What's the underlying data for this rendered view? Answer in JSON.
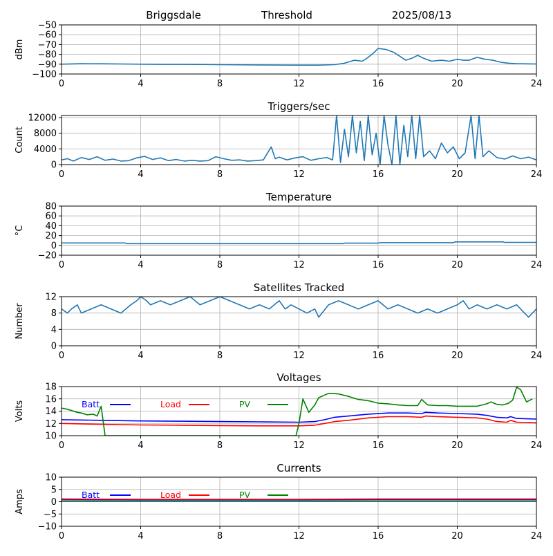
{
  "header": {
    "station": "Briggsdale",
    "label": "Threshold",
    "date": "2025/08/13"
  },
  "colors": {
    "series": "#1f77b4",
    "batt": "#0000ff",
    "load": "#ff0000",
    "pv": "#008000",
    "grid": "#b0b0b0",
    "axis": "#000000"
  },
  "chart_data": [
    {
      "id": "threshold",
      "type": "line",
      "title": "",
      "ylabel": "dBm",
      "xlim": [
        0,
        24
      ],
      "xticks": [
        "0",
        "4",
        "8",
        "12",
        "16",
        "20",
        "24"
      ],
      "ylim": [
        -100,
        -50
      ],
      "yticks": [
        "−100",
        "−90",
        "−80",
        "−70",
        "−60",
        "−50"
      ],
      "ytick_values": [
        -100,
        -90,
        -80,
        -70,
        -60,
        -50
      ],
      "grid": true,
      "series": [
        {
          "color": "#1f77b4",
          "x": [
            0,
            1,
            2,
            3,
            4,
            5,
            6,
            7,
            8,
            9,
            10,
            11,
            12,
            13,
            13.8,
            14.3,
            14.8,
            15.2,
            15.5,
            15.8,
            16,
            16.4,
            16.8,
            17.1,
            17.4,
            17.7,
            18,
            18.3,
            18.7,
            19.2,
            19.6,
            20,
            20.3,
            20.6,
            21,
            21.4,
            21.8,
            22.2,
            22.6,
            23,
            24
          ],
          "y": [
            -90,
            -89.5,
            -89.6,
            -89.8,
            -90,
            -90.2,
            -90.2,
            -90.3,
            -90.5,
            -90.6,
            -90.8,
            -90.9,
            -91,
            -91,
            -90.5,
            -89,
            -86,
            -87,
            -83,
            -78,
            -74,
            -75,
            -78,
            -82,
            -86,
            -84,
            -81,
            -84,
            -87,
            -86,
            -87,
            -85,
            -86,
            -86,
            -83,
            -85,
            -86,
            -88,
            -89,
            -89.5,
            -89.8
          ]
        }
      ]
    },
    {
      "id": "triggers",
      "type": "line",
      "title": "Triggers/sec",
      "ylabel": "Count",
      "xlim": [
        0,
        24
      ],
      "xticks": [
        "0",
        "4",
        "8",
        "12",
        "16",
        "20",
        "24"
      ],
      "ylim": [
        0,
        12500
      ],
      "yticks": [
        "0",
        "4000",
        "8000",
        "12000"
      ],
      "ytick_values": [
        0,
        4000,
        8000,
        12000
      ],
      "grid": true,
      "series": [
        {
          "color": "#1f77b4",
          "x": [
            0,
            0.3,
            0.6,
            1,
            1.4,
            1.8,
            2.2,
            2.6,
            3,
            3.4,
            3.8,
            4.2,
            4.6,
            5,
            5.4,
            5.8,
            6.2,
            6.6,
            7,
            7.4,
            7.8,
            8.2,
            8.6,
            9,
            9.4,
            9.8,
            10.2,
            10.6,
            10.8,
            11,
            11.4,
            11.8,
            12.2,
            12.6,
            13,
            13.4,
            13.7,
            13.9,
            14.1,
            14.3,
            14.5,
            14.7,
            14.9,
            15.1,
            15.3,
            15.5,
            15.7,
            15.9,
            16.1,
            16.3,
            16.5,
            16.7,
            16.9,
            17.1,
            17.3,
            17.5,
            17.7,
            17.9,
            18.1,
            18.3,
            18.6,
            18.9,
            19.2,
            19.5,
            19.8,
            20.1,
            20.4,
            20.7,
            20.9,
            21.1,
            21.3,
            21.6,
            22,
            22.4,
            22.8,
            23.2,
            23.6,
            24
          ],
          "y": [
            1200,
            1500,
            900,
            1800,
            1300,
            2000,
            1100,
            1400,
            900,
            1000,
            1700,
            2100,
            1300,
            1700,
            1000,
            1300,
            900,
            1100,
            900,
            1000,
            2000,
            1500,
            1100,
            1200,
            900,
            1000,
            1200,
            4500,
            1500,
            1900,
            1200,
            1700,
            2000,
            1100,
            1500,
            1800,
            1200,
            12500,
            500,
            9000,
            2000,
            12500,
            3000,
            11000,
            1000,
            12500,
            2500,
            8000,
            0,
            12500,
            5000,
            0,
            12500,
            0,
            10000,
            2000,
            12500,
            1500,
            12500,
            2000,
            3500,
            1500,
            5500,
            3000,
            4500,
            1500,
            3000,
            12500,
            1500,
            12500,
            2000,
            3500,
            1800,
            1400,
            2200,
            1500,
            1900,
            1200
          ]
        }
      ]
    },
    {
      "id": "temperature",
      "type": "line",
      "title": "Temperature",
      "ylabel": "°C",
      "xlim": [
        0,
        24
      ],
      "xticks": [
        "0",
        "4",
        "8",
        "12",
        "16",
        "20",
        "24"
      ],
      "ylim": [
        -20,
        80
      ],
      "yticks": [
        "−20",
        "0",
        "20",
        "40",
        "60",
        "80"
      ],
      "ytick_values": [
        -20,
        0,
        20,
        40,
        60,
        80
      ],
      "grid": true,
      "series": [
        {
          "color": "#1f77b4",
          "x": [
            0,
            3.2,
            3.3,
            14.2,
            14.3,
            16,
            16.1,
            19.8,
            19.9,
            22.3,
            22.4,
            24
          ],
          "y": [
            5,
            5,
            3.5,
            3.5,
            4.5,
            4.5,
            5.5,
            5.5,
            7,
            7,
            6,
            6
          ]
        }
      ]
    },
    {
      "id": "satellites",
      "type": "line",
      "title": "Satellites Tracked",
      "ylabel": "Number",
      "xlim": [
        0,
        24
      ],
      "xticks": [
        "0",
        "4",
        "8",
        "12",
        "16",
        "20",
        "24"
      ],
      "ylim": [
        0,
        12
      ],
      "yticks": [
        "0",
        "4",
        "8",
        "12"
      ],
      "ytick_values": [
        0,
        4,
        8,
        12
      ],
      "grid": true,
      "series": [
        {
          "color": "#1f77b4",
          "x": [
            0,
            0.3,
            0.5,
            0.8,
            1,
            1.5,
            2,
            2.5,
            3,
            3.5,
            3.8,
            4,
            4.3,
            4.5,
            5,
            5.5,
            6,
            6.5,
            7,
            7.5,
            8,
            8.5,
            9,
            9.5,
            10,
            10.5,
            11,
            11.3,
            11.6,
            12,
            12.4,
            12.8,
            13,
            13.5,
            14,
            14.5,
            15,
            15.5,
            16,
            16.5,
            17,
            17.5,
            18,
            18.5,
            19,
            19.5,
            20,
            20.3,
            20.6,
            21,
            21.5,
            22,
            22.5,
            23,
            23.4,
            23.6,
            24
          ],
          "y": [
            9,
            8,
            9,
            10,
            8,
            9,
            10,
            9,
            8,
            10,
            11,
            12,
            11,
            10,
            11,
            10,
            11,
            12,
            10,
            11,
            12,
            11,
            10,
            9,
            10,
            9,
            11,
            9,
            10,
            9,
            8,
            9,
            7,
            10,
            11,
            10,
            9,
            10,
            11,
            9,
            10,
            9,
            8,
            9,
            8,
            9,
            10,
            11,
            9,
            10,
            9,
            10,
            9,
            10,
            8,
            7,
            9
          ]
        }
      ]
    },
    {
      "id": "voltages",
      "type": "line",
      "title": "Voltages",
      "ylabel": "Volts",
      "xlim": [
        0,
        24
      ],
      "xticks": [
        "0",
        "4",
        "8",
        "12",
        "16",
        "20",
        "24"
      ],
      "ylim": [
        10,
        18
      ],
      "yticks": [
        "10",
        "12",
        "14",
        "16",
        "18"
      ],
      "ytick_values": [
        10,
        12,
        14,
        16,
        18
      ],
      "grid": true,
      "legend": [
        "Batt",
        "Load",
        "PV"
      ],
      "series": [
        {
          "name": "Batt",
          "color": "#0000ff",
          "x": [
            0,
            2,
            4,
            6,
            8,
            10,
            12,
            12.8,
            13.3,
            13.8,
            14.5,
            15.5,
            16.5,
            17.5,
            18.2,
            18.4,
            19,
            20,
            21,
            21.5,
            22,
            22.5,
            22.7,
            23,
            24
          ],
          "y": [
            12.6,
            12.5,
            12.4,
            12.35,
            12.3,
            12.25,
            12.2,
            12.3,
            12.6,
            13,
            13.2,
            13.5,
            13.7,
            13.7,
            13.6,
            13.8,
            13.7,
            13.6,
            13.5,
            13.3,
            13,
            12.9,
            13.1,
            12.8,
            12.7
          ]
        },
        {
          "name": "Load",
          "color": "#ff0000",
          "x": [
            0,
            2,
            4,
            6,
            8,
            10,
            12,
            12.8,
            13.3,
            13.8,
            14.5,
            15.5,
            16.5,
            17.5,
            18.2,
            18.4,
            19,
            20,
            21,
            21.5,
            22,
            22.5,
            22.7,
            23,
            24
          ],
          "y": [
            12,
            11.85,
            11.75,
            11.7,
            11.65,
            11.6,
            11.6,
            11.7,
            12,
            12.3,
            12.5,
            12.9,
            13.1,
            13.1,
            13,
            13.2,
            13.1,
            13,
            12.9,
            12.7,
            12.3,
            12.2,
            12.5,
            12.2,
            12.1
          ]
        },
        {
          "name": "PV",
          "color": "#008000",
          "x": [
            0,
            0.3,
            0.8,
            1,
            1.3,
            1.6,
            1.8,
            2,
            2.2,
            11.85,
            12,
            12.2,
            12.5,
            12.8,
            13,
            13.5,
            14,
            14.5,
            15,
            15.5,
            16,
            16.5,
            17,
            17.5,
            18,
            18.2,
            18.5,
            19,
            19.5,
            20,
            20.5,
            21,
            21.5,
            21.7,
            22,
            22.3,
            22.6,
            22.8,
            23,
            23.2,
            23.5,
            23.8
          ],
          "y": [
            14.5,
            14.3,
            13.8,
            13.7,
            13.4,
            13.5,
            13.2,
            14.8,
            10,
            10,
            12,
            16,
            13.8,
            15,
            16.2,
            16.9,
            16.8,
            16.4,
            15.9,
            15.7,
            15.3,
            15.2,
            15,
            14.9,
            14.9,
            15.9,
            15,
            14.9,
            14.9,
            14.8,
            14.8,
            14.8,
            15.2,
            15.5,
            15.1,
            15,
            15.3,
            15.8,
            17.9,
            17.5,
            15.5,
            16
          ]
        }
      ]
    },
    {
      "id": "currents",
      "type": "line",
      "title": "Currents",
      "ylabel": "Amps",
      "xlim": [
        0,
        24
      ],
      "xticks": [
        "0",
        "4",
        "8",
        "12",
        "16",
        "20",
        "24"
      ],
      "ylim": [
        -10,
        10
      ],
      "yticks": [
        "−10",
        "−5",
        "0",
        "5",
        "10"
      ],
      "ytick_values": [
        -10,
        -5,
        0,
        5,
        10
      ],
      "grid": true,
      "legend": [
        "Batt",
        "Load",
        "PV"
      ],
      "series": [
        {
          "name": "Batt",
          "color": "#0000ff",
          "x": [
            0,
            4,
            8,
            12,
            16,
            20,
            24
          ],
          "y": [
            0.8,
            0.7,
            0.7,
            0.7,
            0.8,
            0.8,
            0.8
          ]
        },
        {
          "name": "Load",
          "color": "#ff0000",
          "x": [
            0,
            4,
            8,
            12,
            16,
            20,
            24
          ],
          "y": [
            1.1,
            1.0,
            1.0,
            1.0,
            1.1,
            1.1,
            1.1
          ]
        },
        {
          "name": "PV",
          "color": "#008000",
          "x": [
            0,
            4,
            8,
            12,
            16,
            20,
            24
          ],
          "y": [
            0.1,
            0.1,
            0.1,
            0.1,
            0.1,
            0.1,
            0.1
          ]
        }
      ]
    }
  ]
}
